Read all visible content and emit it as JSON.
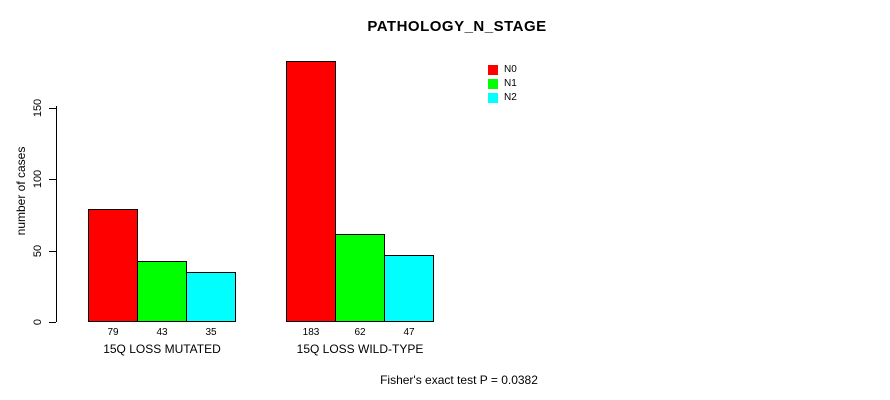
{
  "chart_data": {
    "type": "bar",
    "title": "PATHOLOGY_N_STAGE",
    "ylabel": "number of cases",
    "xlabel": "",
    "categories": [
      "15Q LOSS MUTATED",
      "15Q LOSS WILD-TYPE"
    ],
    "series": [
      {
        "name": "N0",
        "color": "#FF0000",
        "values": [
          79,
          183
        ]
      },
      {
        "name": "N1",
        "color": "#00FF00",
        "values": [
          43,
          62
        ]
      },
      {
        "name": "N2",
        "color": "#00FFFF",
        "values": [
          35,
          47
        ]
      }
    ],
    "yticks": [
      0,
      50,
      100,
      150
    ],
    "ylim": [
      0,
      190
    ],
    "grid": false,
    "legend_position": "top-right",
    "bar_value_labels": true,
    "annotation": "Fisher's exact test P = 0.0382",
    "axis_color": "#000000",
    "background_color": "#FFFFFF"
  }
}
